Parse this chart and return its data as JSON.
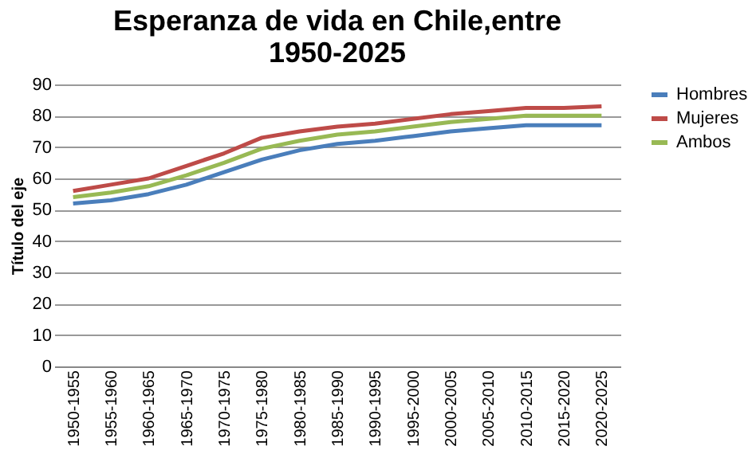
{
  "chart_data": {
    "type": "line",
    "title": "Esperanza de vida en Chile,entre 1950-2025",
    "ylabel": "Título del eje",
    "categories": [
      "1950-1955",
      "1955-1960",
      "1960-1965",
      "1965-1970",
      "1970-1975",
      "1975-1980",
      "1980-1985",
      "1985-1990",
      "1990-1995",
      "1995-2000",
      "2000-2005",
      "2005-2010",
      "2010-2015",
      "2015-2020",
      "2020-2025"
    ],
    "series": [
      {
        "name": "Hombres",
        "color": "#4a7ebb",
        "values": [
          52,
          53,
          55,
          58,
          62,
          66,
          69,
          71,
          72,
          73.5,
          75,
          76,
          77,
          77,
          77
        ]
      },
      {
        "name": "Mujeres",
        "color": "#be4b48",
        "values": [
          56,
          58,
          60,
          64,
          68,
          73,
          75,
          76.5,
          77.5,
          79,
          80.5,
          81.5,
          82.5,
          82.5,
          83
        ]
      },
      {
        "name": "Ambos",
        "color": "#98b954",
        "values": [
          54,
          55.5,
          57.5,
          61,
          65,
          69.5,
          72,
          74,
          75,
          76.5,
          78,
          79,
          80,
          80,
          80
        ]
      }
    ],
    "ylim": [
      0,
      90
    ],
    "yticks": [
      0,
      10,
      20,
      30,
      40,
      50,
      60,
      70,
      80,
      90
    ],
    "grid": "y",
    "legend": "right",
    "marker": "none",
    "line_style": "solid"
  }
}
